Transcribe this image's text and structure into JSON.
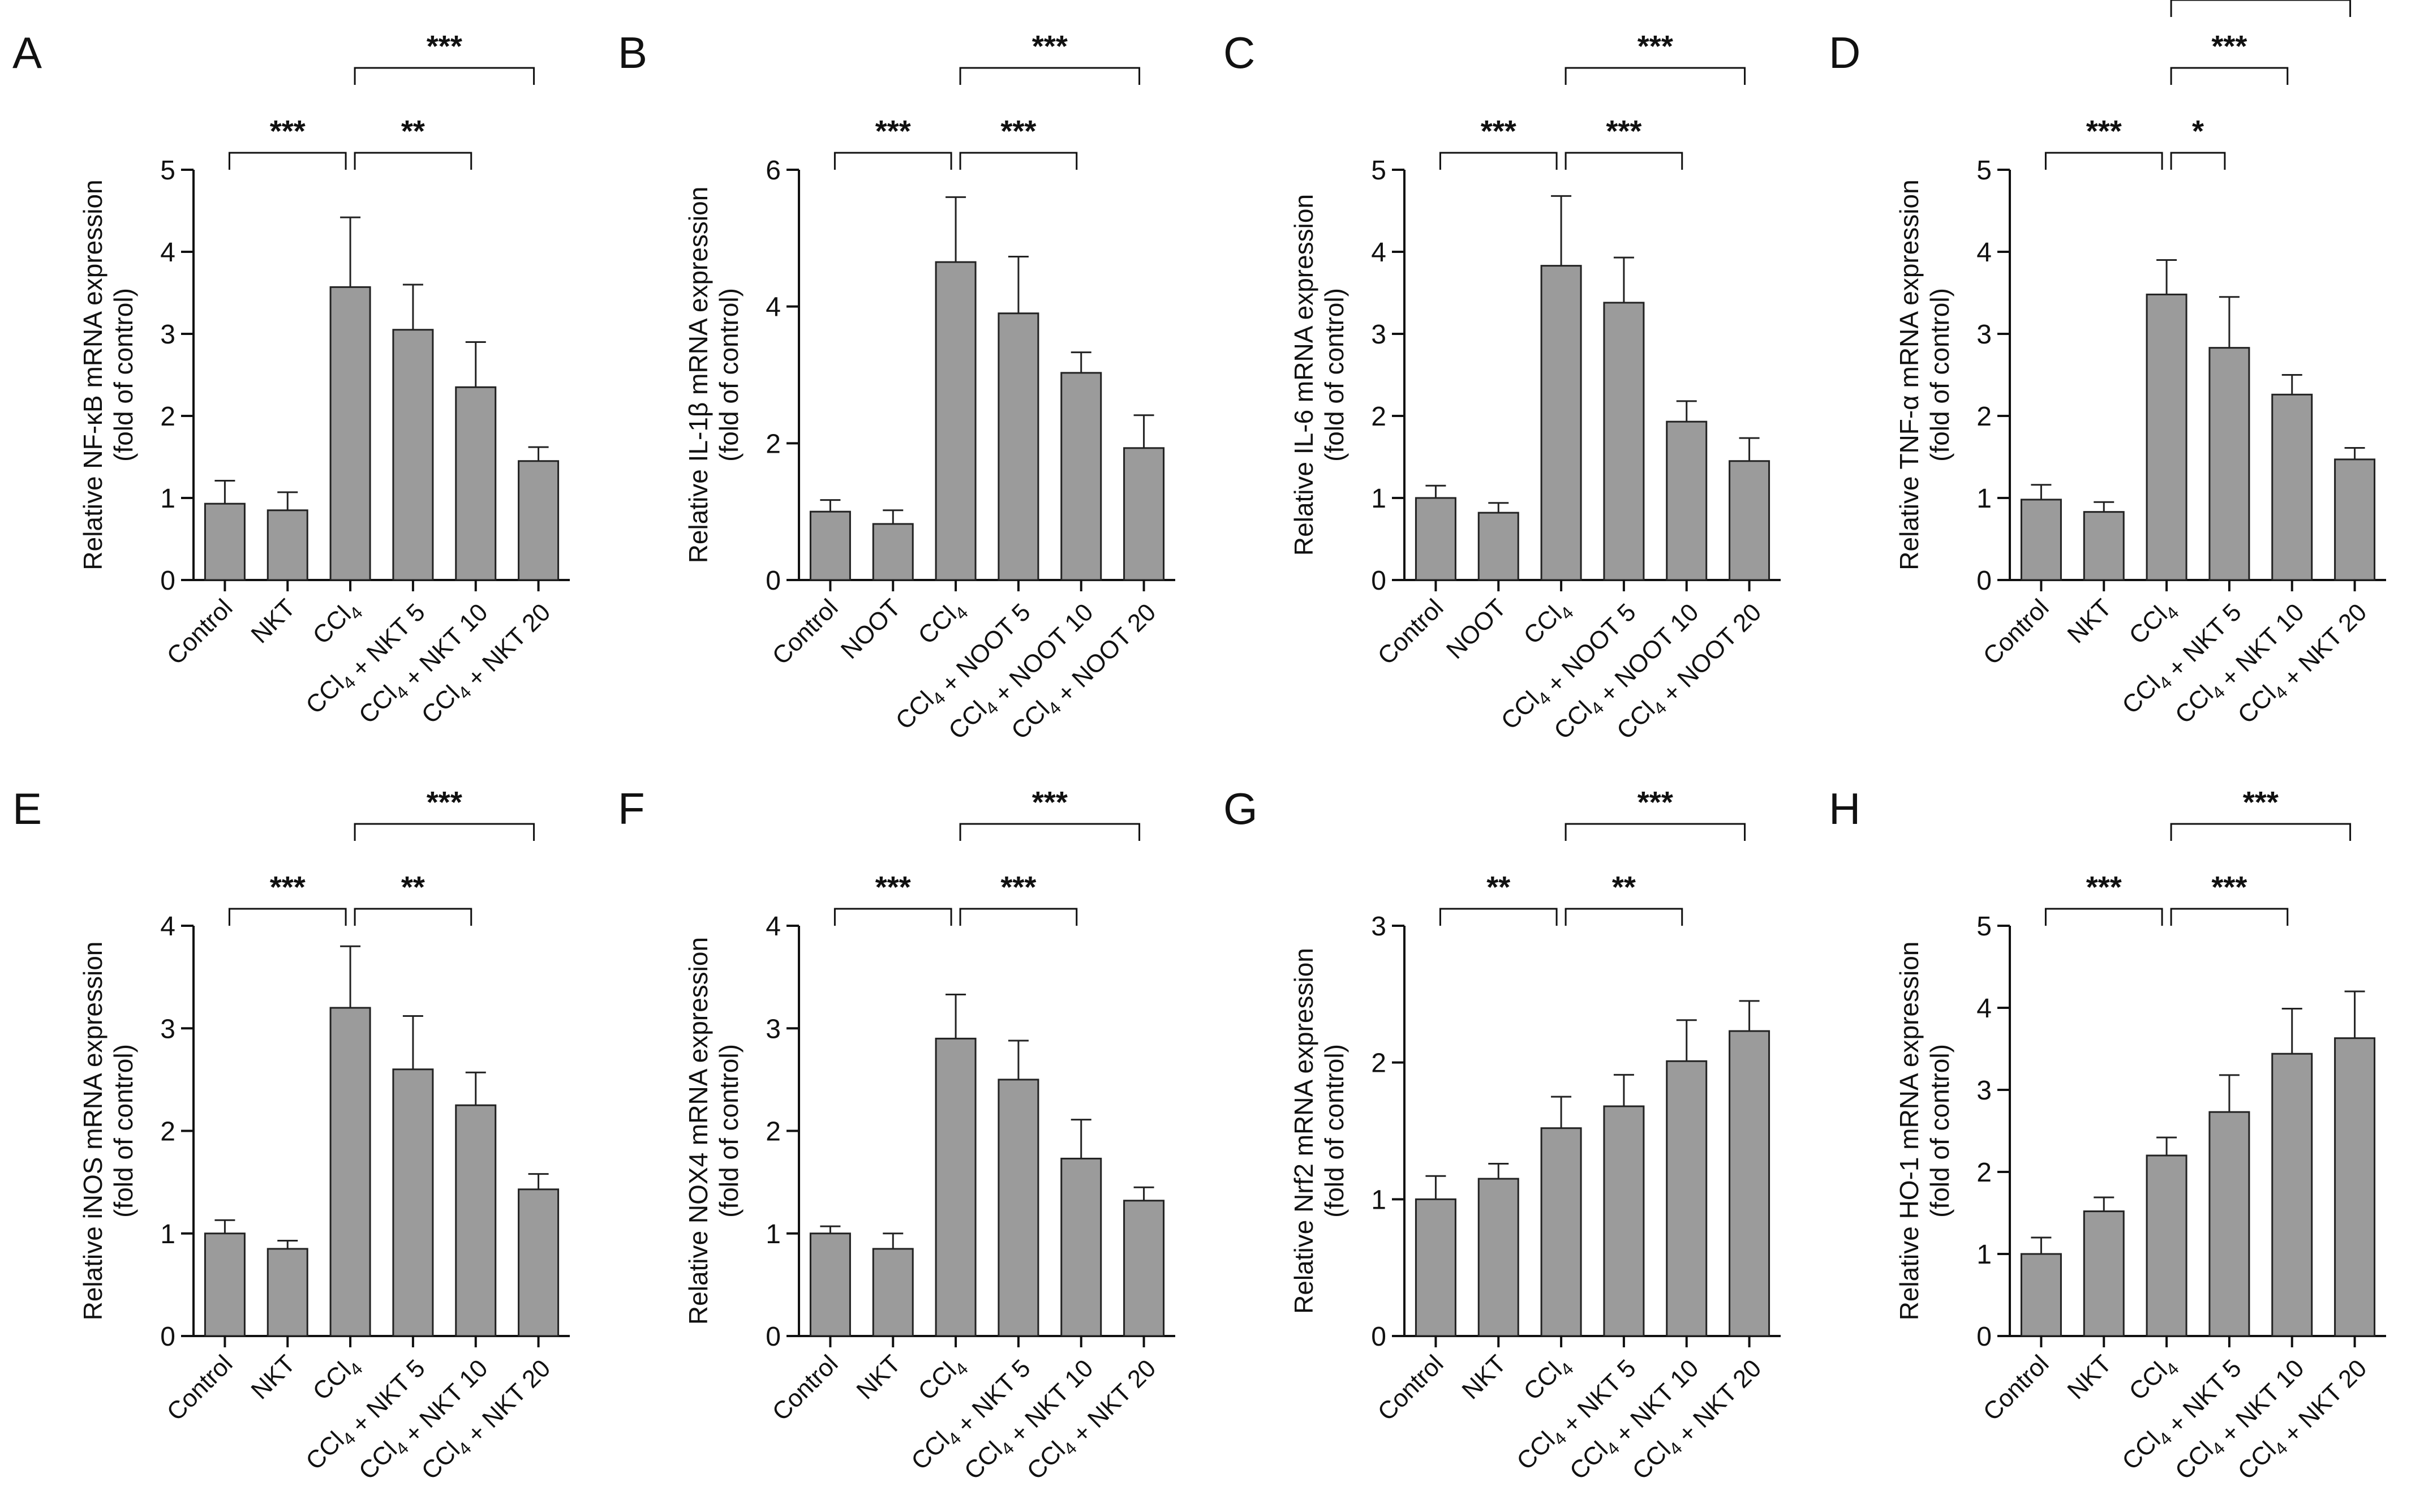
{
  "chart_data": [
    {
      "type": "bar",
      "panel": "A",
      "title": "",
      "ylabel": "Relative NF-κB mRNA expression",
      "ylabel2": "(fold of control)",
      "ylim": [
        0,
        5
      ],
      "yticks": [
        0,
        1,
        2,
        3,
        4,
        5
      ],
      "categories": [
        "Control",
        "NKT",
        "CCl4",
        "CCl4 + NKT 5",
        "CCl4 + NKT 10",
        "CCl4 + NKT 20"
      ],
      "values": [
        0.93,
        0.85,
        3.57,
        3.05,
        2.35,
        1.45
      ],
      "errors": [
        0.28,
        0.22,
        0.85,
        0.55,
        0.55,
        0.17
      ],
      "significance": [
        {
          "from": 0,
          "to": 2,
          "label": "***"
        },
        {
          "from": 2,
          "to": 4,
          "label": "**"
        },
        {
          "from": 2,
          "to": 5,
          "label": "***"
        }
      ]
    },
    {
      "type": "bar",
      "panel": "B",
      "title": "",
      "ylabel": "Relative IL-1β mRNA expression",
      "ylabel2": "(fold of control)",
      "ylim": [
        0,
        6
      ],
      "yticks": [
        0,
        2,
        4,
        6
      ],
      "categories": [
        "Control",
        "NOOT",
        "CCl4",
        "CCl4 + NOOT 5",
        "CCl4 + NOOT 10",
        "CCl4 + NOOT 20"
      ],
      "values": [
        1.0,
        0.82,
        4.65,
        3.9,
        3.03,
        1.93
      ],
      "errors": [
        0.17,
        0.2,
        0.95,
        0.83,
        0.3,
        0.48
      ],
      "significance": [
        {
          "from": 0,
          "to": 2,
          "label": "***"
        },
        {
          "from": 2,
          "to": 4,
          "label": "***"
        },
        {
          "from": 2,
          "to": 5,
          "label": "***"
        }
      ]
    },
    {
      "type": "bar",
      "panel": "C",
      "title": "",
      "ylabel": "Relative IL-6 mRNA expression",
      "ylabel2": "(fold of control)",
      "ylim": [
        0,
        5
      ],
      "yticks": [
        0,
        1,
        2,
        3,
        4,
        5
      ],
      "categories": [
        "Control",
        "NOOT",
        "CCl4",
        "CCl4 + NOOT 5",
        "CCl4 + NOOT 10",
        "CCl4 + NOOT 20"
      ],
      "values": [
        1.0,
        0.82,
        3.83,
        3.38,
        1.93,
        1.45
      ],
      "errors": [
        0.15,
        0.12,
        0.85,
        0.55,
        0.25,
        0.28
      ],
      "significance": [
        {
          "from": 0,
          "to": 2,
          "label": "***"
        },
        {
          "from": 2,
          "to": 4,
          "label": "***"
        },
        {
          "from": 2,
          "to": 5,
          "label": "***"
        }
      ]
    },
    {
      "type": "bar",
      "panel": "D",
      "title": "",
      "ylabel": "Relative TNF-α mRNA expression",
      "ylabel2": "(fold of control)",
      "ylim": [
        0,
        5
      ],
      "yticks": [
        0,
        1,
        2,
        3,
        4,
        5
      ],
      "categories": [
        "Control",
        "NKT",
        "CCl4",
        "CCl4 + NKT 5",
        "CCl4 + NKT 10",
        "CCl4 + NKT 20"
      ],
      "values": [
        0.98,
        0.83,
        3.48,
        2.83,
        2.26,
        1.47
      ],
      "errors": [
        0.18,
        0.12,
        0.42,
        0.62,
        0.24,
        0.14
      ],
      "significance": [
        {
          "from": 0,
          "to": 2,
          "label": "***"
        },
        {
          "from": 2,
          "to": 3,
          "label": "*"
        },
        {
          "from": 2,
          "to": 4,
          "label": "***"
        },
        {
          "from": 2,
          "to": 5,
          "label": "***"
        }
      ]
    },
    {
      "type": "bar",
      "panel": "E",
      "title": "",
      "ylabel": "Relative iNOS mRNA expression",
      "ylabel2": "(fold of control)",
      "ylim": [
        0,
        4
      ],
      "yticks": [
        0,
        1,
        2,
        3,
        4
      ],
      "categories": [
        "Control",
        "NKT",
        "CCl4",
        "CCl4 + NKT 5",
        "CCl4 + NKT 10",
        "CCl4 + NKT 20"
      ],
      "values": [
        1.0,
        0.85,
        3.2,
        2.6,
        2.25,
        1.43
      ],
      "errors": [
        0.13,
        0.08,
        0.6,
        0.52,
        0.32,
        0.15
      ],
      "significance": [
        {
          "from": 0,
          "to": 2,
          "label": "***"
        },
        {
          "from": 2,
          "to": 4,
          "label": "**"
        },
        {
          "from": 2,
          "to": 5,
          "label": "***"
        }
      ]
    },
    {
      "type": "bar",
      "panel": "F",
      "title": "",
      "ylabel": "Relative NOX4 mRNA expression",
      "ylabel2": "(fold of control)",
      "ylim": [
        0,
        4
      ],
      "yticks": [
        0,
        1,
        2,
        3,
        4
      ],
      "categories": [
        "Control",
        "NKT",
        "CCl4",
        "CCl4 + NKT 5",
        "CCl4 + NKT 10",
        "CCl4 + NKT 20"
      ],
      "values": [
        1.0,
        0.85,
        2.9,
        2.5,
        1.73,
        1.32
      ],
      "errors": [
        0.07,
        0.15,
        0.43,
        0.38,
        0.38,
        0.13
      ],
      "significance": [
        {
          "from": 0,
          "to": 2,
          "label": "***"
        },
        {
          "from": 2,
          "to": 4,
          "label": "***"
        },
        {
          "from": 2,
          "to": 5,
          "label": "***"
        }
      ]
    },
    {
      "type": "bar",
      "panel": "G",
      "title": "",
      "ylabel": "Relative Nrf2 mRNA expression",
      "ylabel2": "(fold of control)",
      "ylim": [
        0,
        3
      ],
      "yticks": [
        0,
        1,
        2,
        3
      ],
      "categories": [
        "Control",
        "NKT",
        "CCl4",
        "CCl4 + NKT 5",
        "CCl4 + NKT 10",
        "CCl4 + NKT 20"
      ],
      "values": [
        1.0,
        1.15,
        1.52,
        1.68,
        2.01,
        2.23
      ],
      "errors": [
        0.17,
        0.11,
        0.23,
        0.23,
        0.3,
        0.22
      ],
      "significance": [
        {
          "from": 0,
          "to": 2,
          "label": "**"
        },
        {
          "from": 2,
          "to": 4,
          "label": "**"
        },
        {
          "from": 2,
          "to": 5,
          "label": "***"
        }
      ]
    },
    {
      "type": "bar",
      "panel": "H",
      "title": "",
      "ylabel": "Relative HO-1 mRNA expression",
      "ylabel2": "(fold of control)",
      "ylim": [
        0,
        5
      ],
      "yticks": [
        0,
        1,
        2,
        3,
        4,
        5
      ],
      "categories": [
        "Control",
        "NKT",
        "CCl4",
        "CCl4 + NKT 5",
        "CCl4 + NKT 10",
        "CCl4 + NKT 20"
      ],
      "values": [
        1.0,
        1.52,
        2.2,
        2.73,
        3.44,
        3.63
      ],
      "errors": [
        0.2,
        0.17,
        0.22,
        0.45,
        0.55,
        0.57
      ],
      "significance": [
        {
          "from": 0,
          "to": 2,
          "label": "***"
        },
        {
          "from": 2,
          "to": 4,
          "label": "***"
        },
        {
          "from": 2,
          "to": 5,
          "label": "***"
        }
      ]
    }
  ],
  "style": {
    "bar_fill": "#9b9b9b",
    "bar_stroke": "#222222",
    "axis_color": "#111111"
  }
}
